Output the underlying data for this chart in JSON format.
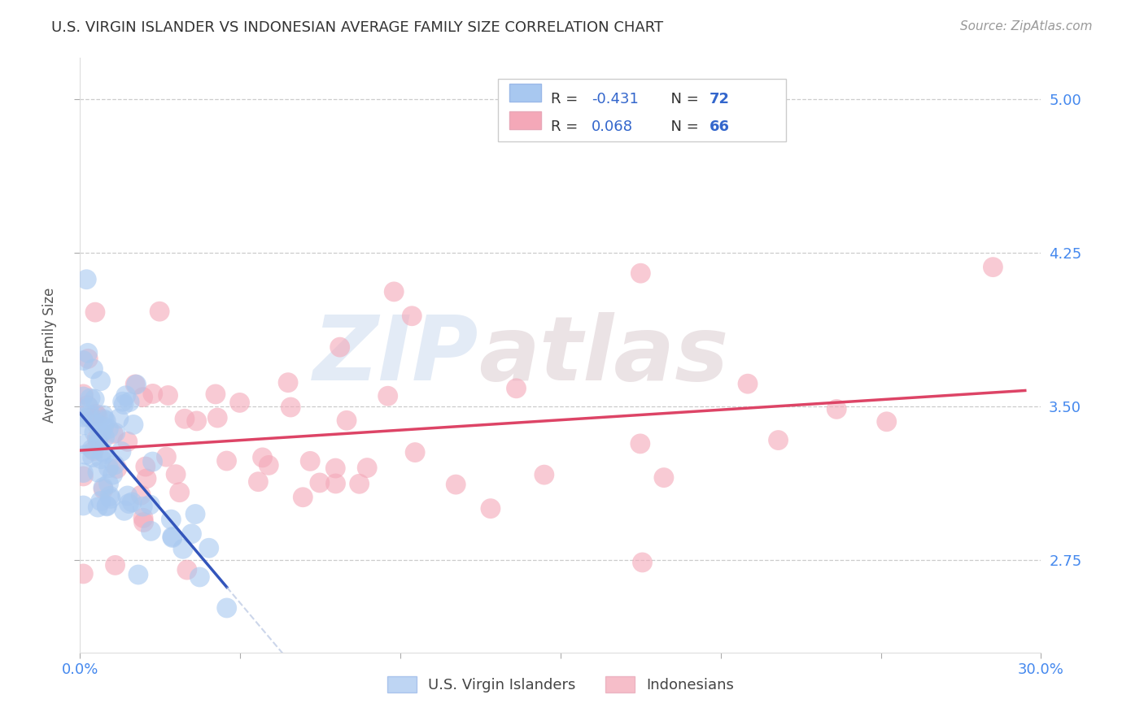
{
  "title": "U.S. VIRGIN ISLANDER VS INDONESIAN AVERAGE FAMILY SIZE CORRELATION CHART",
  "source": "Source: ZipAtlas.com",
  "ylabel": "Average Family Size",
  "xmin": 0.0,
  "xmax": 0.3,
  "ymin": 2.3,
  "ymax": 5.2,
  "yticks": [
    2.75,
    3.5,
    4.25,
    5.0
  ],
  "xticks": [
    0.0,
    0.05,
    0.1,
    0.15,
    0.2,
    0.25,
    0.3
  ],
  "background_color": "#ffffff",
  "grid_color": "#cccccc",
  "blue_color": "#a8c8f0",
  "pink_color": "#f4a8b8",
  "blue_line_color": "#3355bb",
  "pink_line_color": "#dd4466",
  "blue_R": -0.431,
  "blue_N": 72,
  "pink_R": 0.068,
  "pink_N": 66,
  "watermark_zip": "ZIP",
  "watermark_atlas": "atlas",
  "legend_bottom_blue": "U.S. Virgin Islanders",
  "legend_bottom_pink": "Indonesians"
}
